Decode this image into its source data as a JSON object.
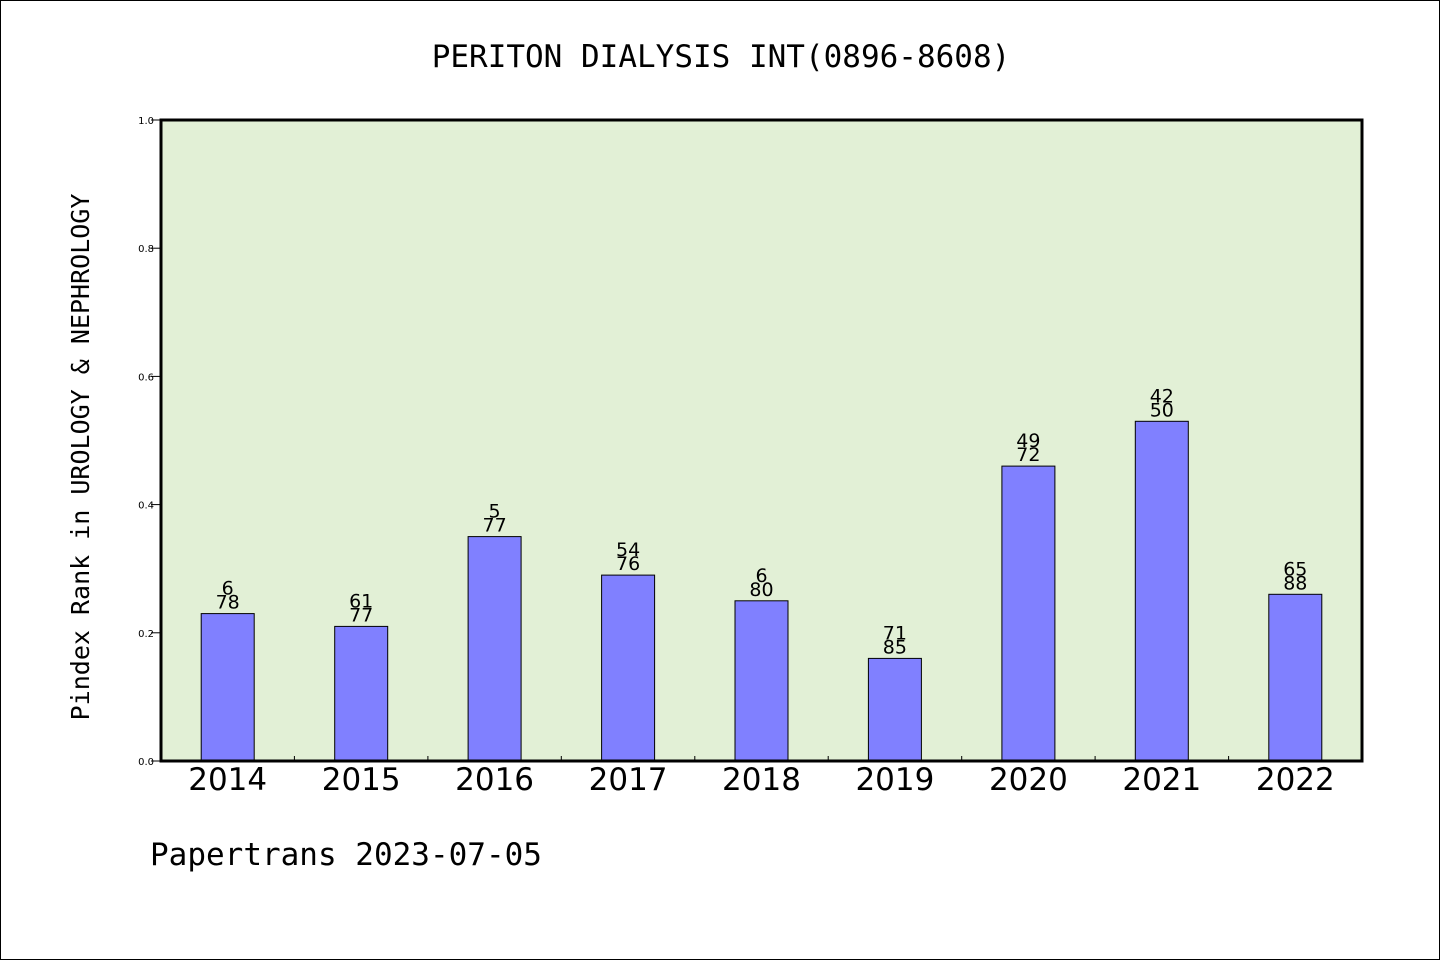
{
  "chart_data": {
    "type": "bar",
    "title": "PERITON DIALYSIS INT(0896-8608)",
    "xlabel": "",
    "ylabel": "Pindex Rank in UROLOGY & NEPHROLOGY",
    "ylim": [
      0,
      1.0
    ],
    "yticks": [
      "0.0",
      "0.2",
      "0.4",
      "0.6",
      "0.8",
      "1.0"
    ],
    "categories": [
      "2014",
      "2015",
      "2016",
      "2017",
      "2018",
      "2019",
      "2020",
      "2021",
      "2022"
    ],
    "values": [
      0.23,
      0.21,
      0.35,
      0.29,
      0.25,
      0.16,
      0.46,
      0.53,
      0.26
    ],
    "bar_labels": [
      {
        "rank": "6",
        "total": "78"
      },
      {
        "rank": "61",
        "total": "77"
      },
      {
        "rank": "5",
        "total": "77"
      },
      {
        "rank": "54",
        "total": "76"
      },
      {
        "rank": "6",
        "total": "80"
      },
      {
        "rank": "71",
        "total": "85"
      },
      {
        "rank": "49",
        "total": "72"
      },
      {
        "rank": "42",
        "total": "50"
      },
      {
        "rank": "65",
        "total": "88"
      }
    ],
    "grid": false,
    "colors": {
      "bar": "#8080ff",
      "plot_background": "#e2f0d6",
      "border": "#000000"
    }
  },
  "footer": "Papertrans 2023-07-05"
}
